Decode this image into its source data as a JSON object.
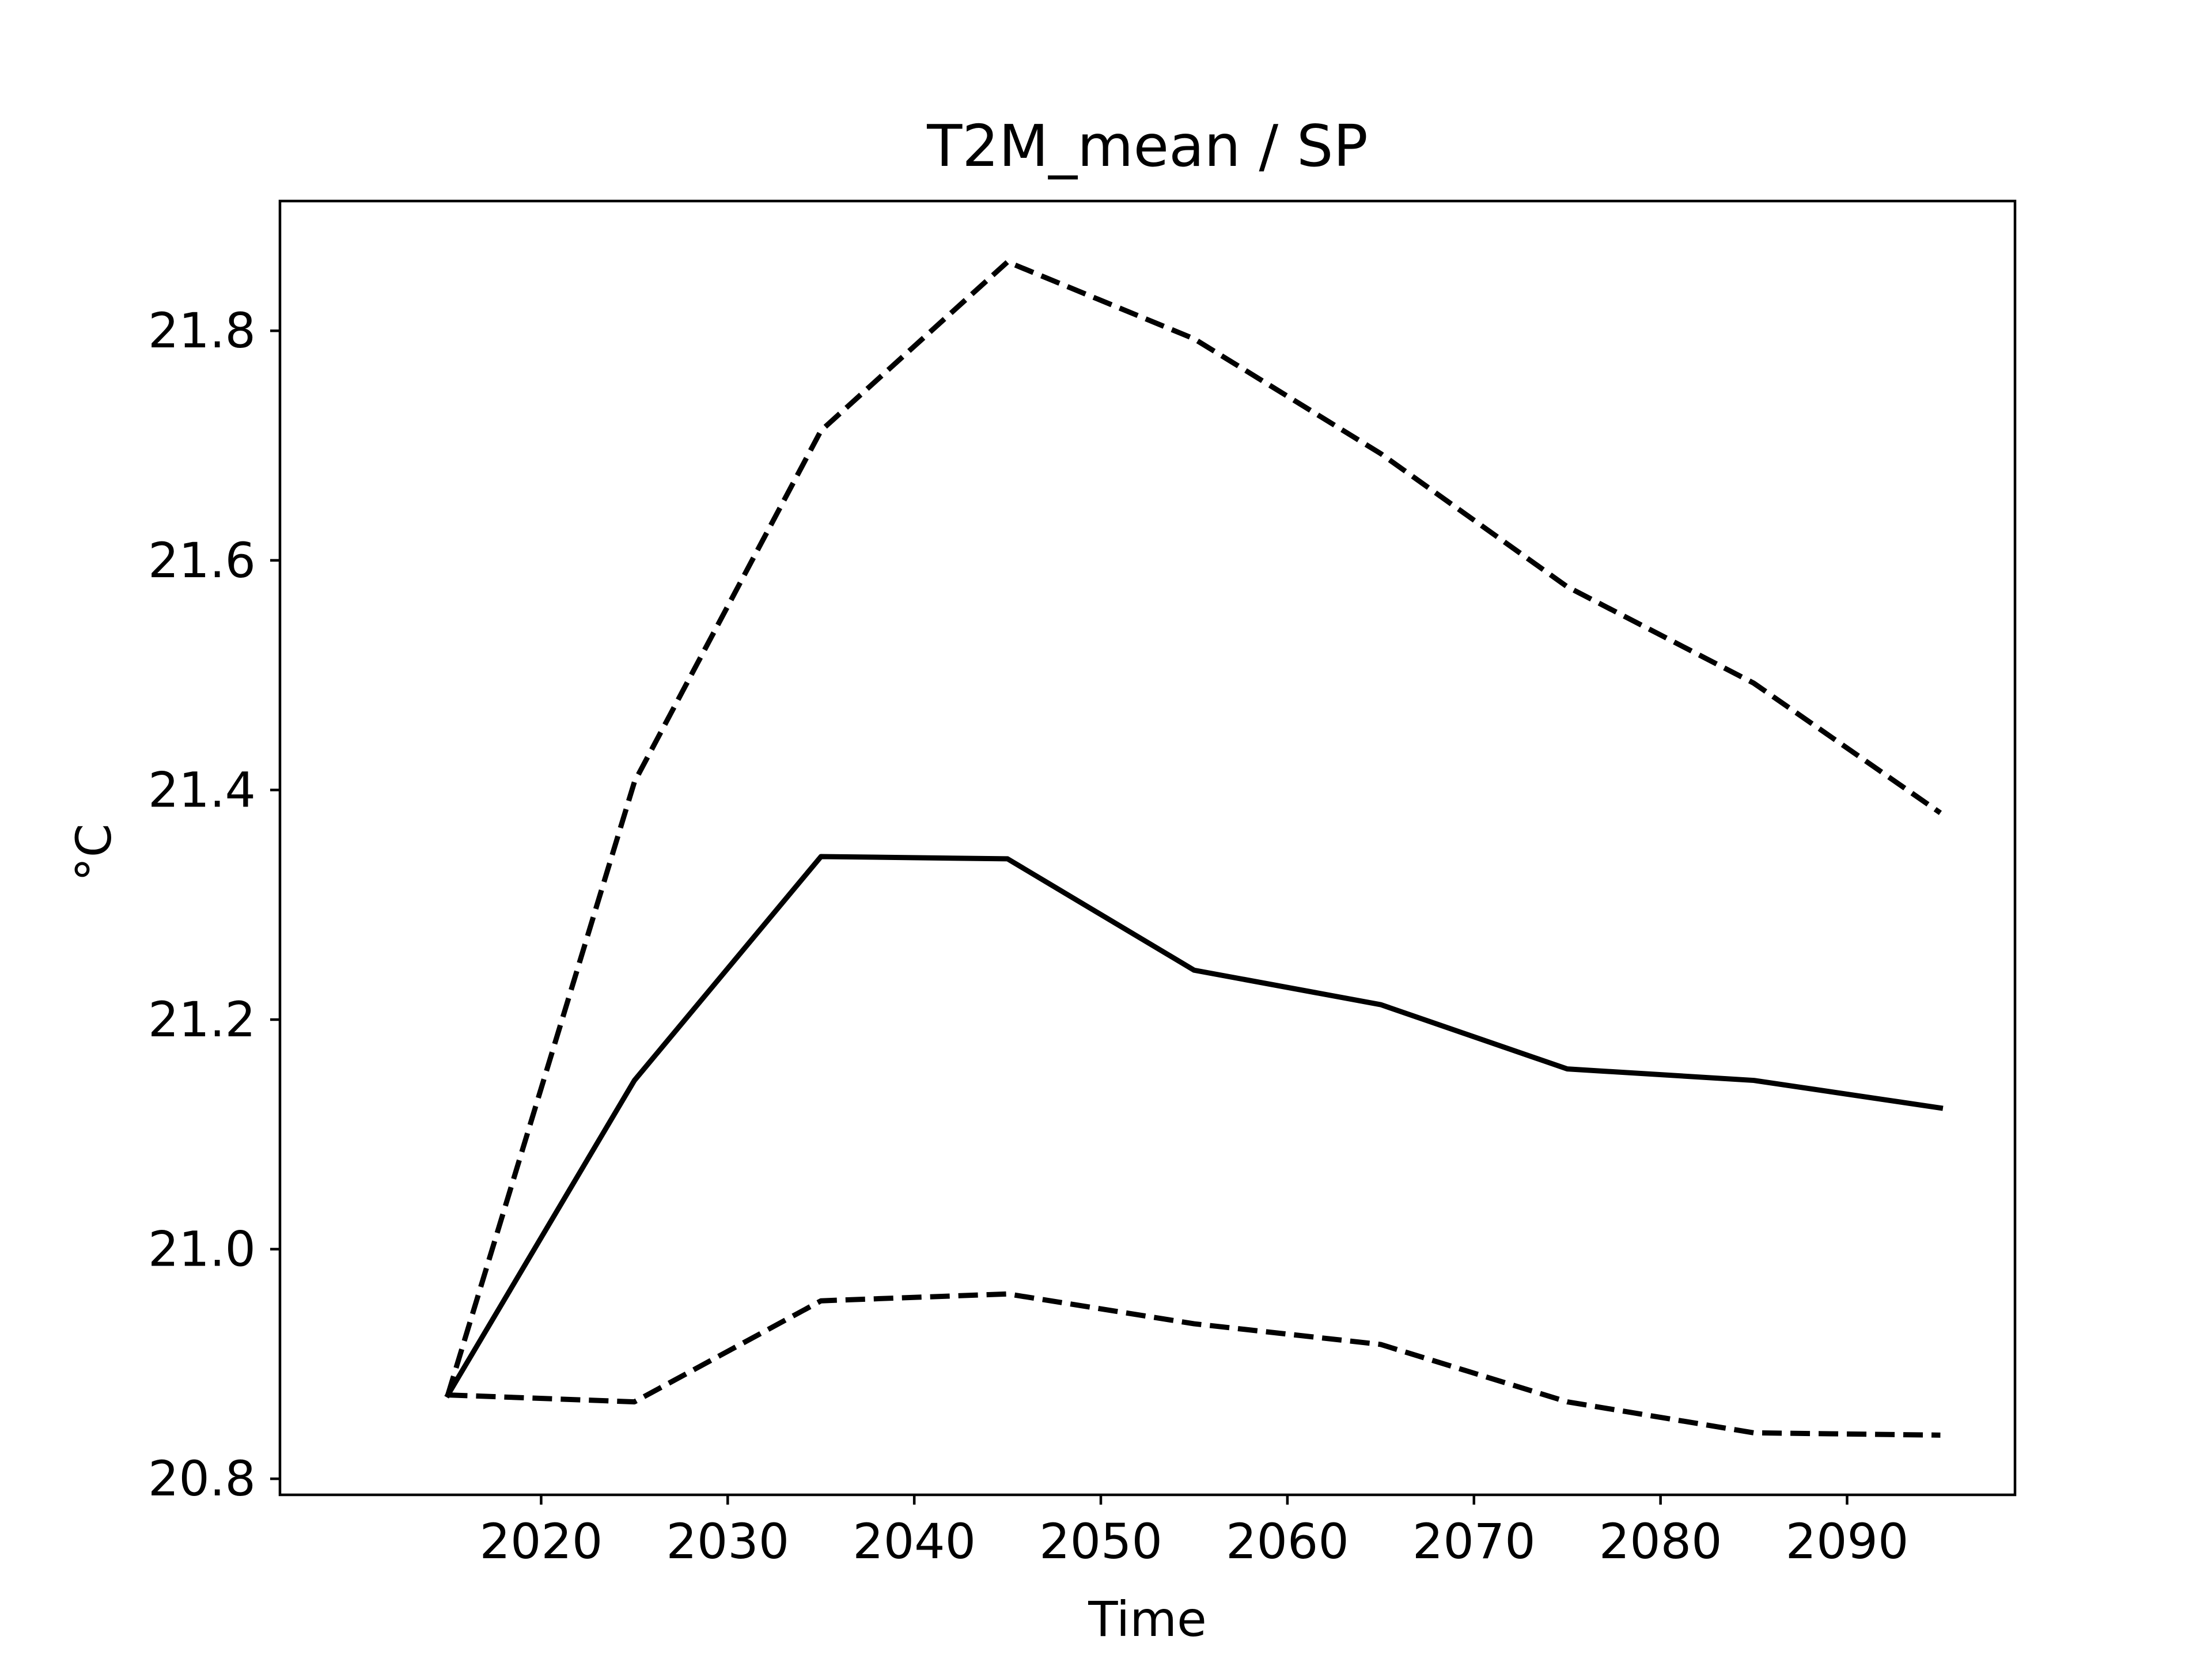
{
  "chart_data": {
    "type": "line",
    "title": "T2M_mean / SP",
    "xlabel": "Time",
    "ylabel": "°C",
    "x": [
      2015,
      2025,
      2035,
      2045,
      2055,
      2065,
      2075,
      2085,
      2095
    ],
    "xlim": [
      2006,
      2099
    ],
    "ylim": [
      20.786,
      21.913
    ],
    "xticks": [
      2020,
      2030,
      2040,
      2050,
      2060,
      2070,
      2080,
      2090
    ],
    "xtick_labels": [
      "2020",
      "2030",
      "2040",
      "2050",
      "2060",
      "2070",
      "2080",
      "2090"
    ],
    "yticks": [
      20.8,
      21.0,
      21.2,
      21.4,
      21.6,
      21.8
    ],
    "ytick_labels": [
      "20.8",
      "21.0",
      "21.2",
      "21.4",
      "21.6",
      "21.8"
    ],
    "grid": false,
    "legend": false,
    "series": [
      {
        "values": [
          20.873,
          21.407,
          21.713,
          21.86,
          21.793,
          21.693,
          21.577,
          21.493,
          21.38
        ],
        "style": "dashed",
        "color": "#000000"
      },
      {
        "values": [
          20.873,
          21.147,
          21.342,
          21.34,
          21.243,
          21.213,
          21.157,
          21.147,
          21.123
        ],
        "style": "solid",
        "color": "#000000"
      },
      {
        "values": [
          20.873,
          20.867,
          20.955,
          20.961,
          20.935,
          20.917,
          20.867,
          20.84,
          20.838
        ],
        "style": "dashed",
        "color": "#000000"
      }
    ]
  }
}
